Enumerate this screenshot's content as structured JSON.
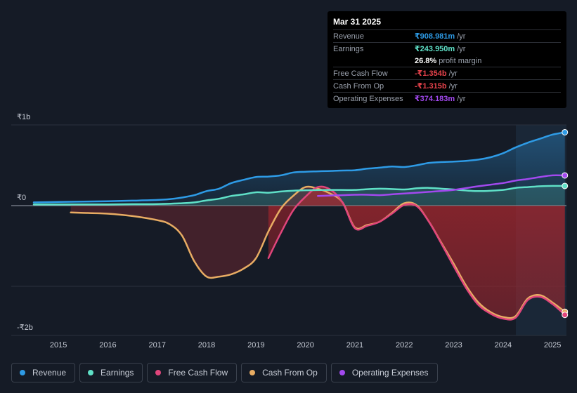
{
  "chart_data": {
    "type": "area",
    "currency_unit": "₹",
    "y_ticks": [
      {
        "label": "₹1b",
        "value": 1000
      },
      {
        "label": "₹0",
        "value": 0
      },
      {
        "label": "-₹2b",
        "value": -2000
      }
    ],
    "ylim": [
      -1600,
      1000
    ],
    "x_ticks": [
      "2015",
      "2016",
      "2017",
      "2018",
      "2019",
      "2020",
      "2021",
      "2022",
      "2023",
      "2024",
      "2025"
    ],
    "xlim": [
      2014.5,
      2025.25
    ],
    "forecast_start": 2024.25,
    "series": [
      {
        "name": "Revenue",
        "color": "#2e9be6",
        "x": [
          2014.5,
          2015,
          2015.5,
          2016,
          2016.5,
          2017,
          2017.25,
          2017.5,
          2017.75,
          2018,
          2018.25,
          2018.5,
          2018.75,
          2019,
          2019.25,
          2019.5,
          2019.75,
          2020,
          2020.25,
          2020.5,
          2020.75,
          2021,
          2021.25,
          2021.5,
          2021.75,
          2022,
          2022.25,
          2022.5,
          2022.75,
          2023,
          2023.25,
          2023.5,
          2023.75,
          2024,
          2024.25,
          2024.5,
          2024.75,
          2025,
          2025.25
        ],
        "values": [
          40,
          45,
          50,
          55,
          62,
          70,
          80,
          100,
          130,
          180,
          210,
          280,
          320,
          355,
          360,
          375,
          410,
          420,
          425,
          430,
          435,
          438,
          458,
          470,
          485,
          478,
          500,
          530,
          540,
          545,
          555,
          570,
          600,
          650,
          720,
          780,
          830,
          880,
          909
        ]
      },
      {
        "name": "Earnings",
        "color": "#5fe0c7",
        "x": [
          2014.5,
          2015,
          2015.5,
          2016,
          2016.5,
          2017,
          2017.5,
          2017.75,
          2018,
          2018.25,
          2018.5,
          2018.75,
          2019,
          2019.25,
          2019.5,
          2019.75,
          2020,
          2020.5,
          2021,
          2021.5,
          2022,
          2022.25,
          2022.5,
          2022.75,
          2023,
          2023.5,
          2024,
          2024.25,
          2024.5,
          2024.75,
          2025,
          2025.25
        ],
        "values": [
          15,
          15,
          15,
          16,
          18,
          20,
          30,
          40,
          65,
          85,
          120,
          140,
          165,
          160,
          175,
          185,
          190,
          195,
          195,
          210,
          200,
          215,
          220,
          210,
          200,
          180,
          195,
          220,
          230,
          240,
          244,
          244
        ]
      },
      {
        "name": "Free Cash Flow",
        "color": "#e0457b",
        "x": [
          2019.25,
          2019.5,
          2019.75,
          2020,
          2020.25,
          2020.5,
          2020.75,
          2021,
          2021.25,
          2021.5,
          2021.75,
          2022,
          2022.25,
          2022.5,
          2022.75,
          2023,
          2023.25,
          2023.5,
          2023.75,
          2024,
          2024.25,
          2024.5,
          2024.75,
          2025,
          2025.25
        ],
        "values": [
          -650,
          -340,
          -60,
          110,
          230,
          200,
          40,
          -280,
          -250,
          -200,
          -100,
          10,
          -5,
          -200,
          -470,
          -750,
          -1020,
          -1230,
          -1340,
          -1400,
          -1390,
          -1170,
          -1130,
          -1220,
          -1354
        ]
      },
      {
        "name": "Cash From Op",
        "color": "#e8ac63",
        "x": [
          2015.25,
          2015.5,
          2016,
          2016.5,
          2017,
          2017.25,
          2017.5,
          2017.75,
          2018,
          2018.25,
          2018.5,
          2018.75,
          2019,
          2019.25,
          2019.5,
          2019.75,
          2020,
          2020.25,
          2020.5,
          2020.75,
          2021,
          2021.25,
          2021.5,
          2021.75,
          2022,
          2022.25,
          2022.5,
          2022.75,
          2023,
          2023.25,
          2023.5,
          2023.75,
          2024,
          2024.25,
          2024.5,
          2024.75,
          2025,
          2025.25
        ],
        "values": [
          -85,
          -90,
          -100,
          -130,
          -180,
          -230,
          -370,
          -690,
          -880,
          -880,
          -850,
          -780,
          -650,
          -320,
          -40,
          120,
          230,
          210,
          150,
          40,
          -270,
          -240,
          -200,
          -90,
          30,
          5,
          -200,
          -460,
          -720,
          -990,
          -1200,
          -1320,
          -1380,
          -1370,
          -1150,
          -1110,
          -1200,
          -1315
        ]
      },
      {
        "name": "Operating Expenses",
        "color": "#a249ef",
        "x": [
          2020.25,
          2020.5,
          2020.75,
          2021,
          2021.25,
          2021.5,
          2021.75,
          2022,
          2022.5,
          2023,
          2023.5,
          2024,
          2024.25,
          2024.5,
          2024.75,
          2025,
          2025.25
        ],
        "values": [
          120,
          125,
          130,
          135,
          135,
          130,
          140,
          150,
          170,
          195,
          240,
          280,
          310,
          330,
          355,
          375,
          374
        ]
      }
    ]
  },
  "tooltip": {
    "date": "Mar 31 2025",
    "rows": [
      {
        "label": "Revenue",
        "value": "₹908.981m",
        "unit": "/yr",
        "color": "#2e9be6"
      },
      {
        "label": "Earnings",
        "value": "₹243.950m",
        "unit": "/yr",
        "color": "#5fe0c7"
      },
      {
        "label": "",
        "value": "26.8%",
        "unit": "profit margin",
        "color": "#ffffff"
      },
      {
        "label": "Free Cash Flow",
        "value": "-₹1.354b",
        "unit": "/yr",
        "color": "#e8434c"
      },
      {
        "label": "Cash From Op",
        "value": "-₹1.315b",
        "unit": "/yr",
        "color": "#e8434c"
      },
      {
        "label": "Operating Expenses",
        "value": "₹374.183m",
        "unit": "/yr",
        "color": "#a249ef"
      }
    ]
  },
  "legend": [
    {
      "label": "Revenue",
      "color": "#2e9be6"
    },
    {
      "label": "Earnings",
      "color": "#5fe0c7"
    },
    {
      "label": "Free Cash Flow",
      "color": "#e0457b"
    },
    {
      "label": "Cash From Op",
      "color": "#e8ac63"
    },
    {
      "label": "Operating Expenses",
      "color": "#a249ef"
    }
  ]
}
